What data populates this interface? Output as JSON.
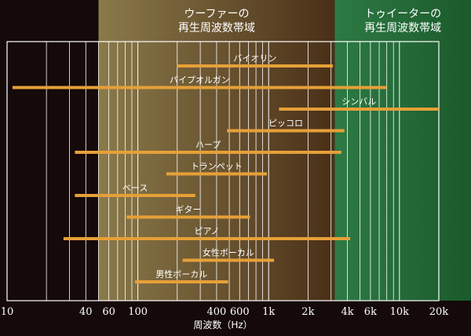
{
  "colors": {
    "background": "#150909",
    "woofer_band_left": "#8a7a4a",
    "woofer_band_right": "#4a2f17",
    "tweeter_band_left": "#2d7a44",
    "tweeter_band_right": "#1b5a2b",
    "bar": "#e6a038",
    "grid": "#ffffff"
  },
  "bands": {
    "woofer": {
      "line1": "ウーファーの",
      "line2": "再生周波数帯域",
      "from_hz": 50,
      "to_hz": 3200
    },
    "tweeter": {
      "line1": "トゥイーターの",
      "line2": "再生周波数帯域",
      "from_hz": 3200,
      "to_hz": 20000
    }
  },
  "chart_data": {
    "type": "range",
    "scale": "log",
    "xlim": [
      10,
      20000
    ],
    "xlabel": "周波数（Hz）",
    "x_ticks": [
      {
        "value": 10,
        "label": "10"
      },
      {
        "value": 40,
        "label": "40"
      },
      {
        "value": 60,
        "label": "60"
      },
      {
        "value": 100,
        "label": "100"
      },
      {
        "value": 400,
        "label": "400"
      },
      {
        "value": 600,
        "label": "600"
      },
      {
        "value": 1000,
        "label": "1k"
      },
      {
        "value": 2000,
        "label": "2k"
      },
      {
        "value": 4000,
        "label": "4k"
      },
      {
        "value": 6000,
        "label": "6k"
      },
      {
        "value": 10000,
        "label": "10k"
      },
      {
        "value": 20000,
        "label": "20k"
      }
    ],
    "ranges": [
      {
        "name": "バイオリン",
        "low": 200,
        "high": 3100
      },
      {
        "name": "パイプオルガン",
        "low": 11,
        "high": 8000
      },
      {
        "name": "シンバル",
        "low": 1200,
        "high": 20000
      },
      {
        "name": "ピッコロ",
        "low": 480,
        "high": 3800
      },
      {
        "name": "ハープ",
        "low": 33,
        "high": 3600
      },
      {
        "name": "トランペット",
        "low": 165,
        "high": 970
      },
      {
        "name": "ベース",
        "low": 33,
        "high": 275
      },
      {
        "name": "ギター",
        "low": 82,
        "high": 720
      },
      {
        "name": "ピアノ",
        "low": 27,
        "high": 4200
      },
      {
        "name": "女性ボーカル",
        "low": 220,
        "high": 1100
      },
      {
        "name": "男性ボーカル",
        "low": 95,
        "high": 490
      }
    ]
  }
}
